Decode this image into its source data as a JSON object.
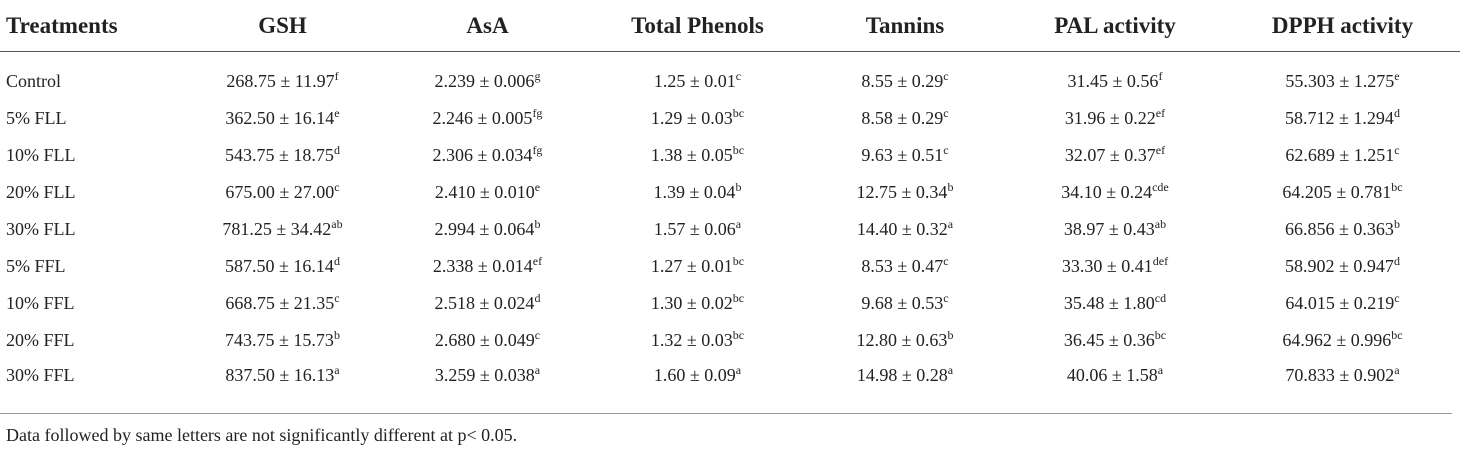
{
  "headers": [
    "Treatments",
    "GSH",
    "AsA",
    "Total Phenols",
    "Tannins",
    "PAL activity",
    "DPPH activity"
  ],
  "rows": [
    {
      "treatment": "Control",
      "cells": [
        {
          "v": "268.75 ± 11.97",
          "s": "f"
        },
        {
          "v": "2.239 ± 0.006",
          "s": "g"
        },
        {
          "v": "1.25 ± 0.01",
          "s": "c"
        },
        {
          "v": "8.55 ± 0.29",
          "s": "c"
        },
        {
          "v": "31.45 ± 0.56",
          "s": "f"
        },
        {
          "v": "55.303 ± 1.275",
          "s": "e"
        }
      ]
    },
    {
      "treatment": "5% FLL",
      "cells": [
        {
          "v": "362.50 ± 16.14",
          "s": "e"
        },
        {
          "v": "2.246 ± 0.005",
          "s": "fg"
        },
        {
          "v": "1.29 ± 0.03",
          "s": "bc"
        },
        {
          "v": "8.58 ± 0.29",
          "s": "c"
        },
        {
          "v": "31.96 ± 0.22",
          "s": "ef"
        },
        {
          "v": "58.712 ± 1.294",
          "s": "d"
        }
      ]
    },
    {
      "treatment": "10% FLL",
      "cells": [
        {
          "v": "543.75 ± 18.75",
          "s": "d"
        },
        {
          "v": "2.306 ± 0.034",
          "s": "fg"
        },
        {
          "v": "1.38 ± 0.05",
          "s": "bc"
        },
        {
          "v": "9.63 ± 0.51",
          "s": "c"
        },
        {
          "v": "32.07 ± 0.37",
          "s": "ef"
        },
        {
          "v": "62.689 ± 1.251",
          "s": "c"
        }
      ]
    },
    {
      "treatment": "20% FLL",
      "cells": [
        {
          "v": "675.00 ± 27.00",
          "s": "c"
        },
        {
          "v": "2.410 ± 0.010",
          "s": "e"
        },
        {
          "v": "1.39 ± 0.04",
          "s": "b"
        },
        {
          "v": "12.75 ± 0.34",
          "s": "b"
        },
        {
          "v": "34.10 ± 0.24",
          "s": "cde"
        },
        {
          "v": "64.205 ± 0.781",
          "s": "bc"
        }
      ]
    },
    {
      "treatment": "30% FLL",
      "cells": [
        {
          "v": "781.25 ± 34.42",
          "s": "ab"
        },
        {
          "v": "2.994 ± 0.064",
          "s": "b"
        },
        {
          "v": "1.57 ± 0.06",
          "s": "a"
        },
        {
          "v": "14.40 ± 0.32",
          "s": "a"
        },
        {
          "v": "38.97 ± 0.43",
          "s": "ab"
        },
        {
          "v": "66.856 ± 0.363",
          "s": "b"
        }
      ]
    },
    {
      "treatment": "5% FFL",
      "cells": [
        {
          "v": "587.50 ± 16.14",
          "s": "d"
        },
        {
          "v": "2.338 ± 0.014",
          "s": "ef"
        },
        {
          "v": "1.27 ± 0.01",
          "s": "bc"
        },
        {
          "v": "8.53 ± 0.47",
          "s": "c"
        },
        {
          "v": "33.30 ± 0.41",
          "s": "def"
        },
        {
          "v": "58.902 ± 0.947",
          "s": "d"
        }
      ]
    },
    {
      "treatment": "10% FFL",
      "cells": [
        {
          "v": "668.75 ± 21.35",
          "s": "c"
        },
        {
          "v": "2.518 ± 0.024",
          "s": "d"
        },
        {
          "v": "1.30 ± 0.02",
          "s": "bc"
        },
        {
          "v": "9.68 ± 0.53",
          "s": "c"
        },
        {
          "v": "35.48 ± 1.80",
          "s": "cd"
        },
        {
          "v": "64.015 ± 0.219",
          "s": "c"
        }
      ]
    },
    {
      "treatment": "20% FFL",
      "cells": [
        {
          "v": "743.75 ± 15.73",
          "s": "b"
        },
        {
          "v": "2.680 ± 0.049",
          "s": "c"
        },
        {
          "v": "1.32 ± 0.03",
          "s": "bc"
        },
        {
          "v": "12.80 ± 0.63",
          "s": "b"
        },
        {
          "v": "36.45 ± 0.36",
          "s": "bc"
        },
        {
          "v": "64.962 ± 0.996",
          "s": "bc"
        }
      ]
    },
    {
      "treatment": "30% FFL",
      "cells": [
        {
          "v": "837.50 ± 16.13",
          "s": "a"
        },
        {
          "v": "3.259 ± 0.038",
          "s": "a"
        },
        {
          "v": "1.60 ± 0.09",
          "s": "a"
        },
        {
          "v": "14.98 ± 0.28",
          "s": "a"
        },
        {
          "v": "40.06 ± 1.58",
          "s": "a"
        },
        {
          "v": "70.833 ± 0.902",
          "s": "a"
        }
      ]
    }
  ],
  "footnote": "Data followed by same letters are not significantly different at p< 0.05."
}
